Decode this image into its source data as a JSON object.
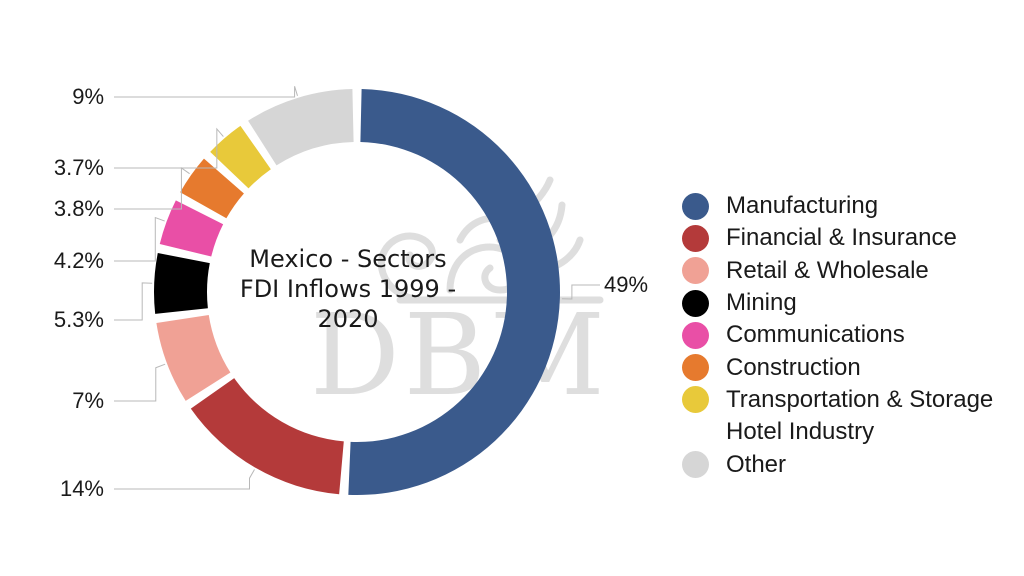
{
  "chart_data": {
    "type": "pie",
    "title": "Mexico - Sectors FDI Inflows 1999 - 2020",
    "title_lines": [
      "Mexico - Sectors",
      "FDI Inflows 1999 -",
      "2020"
    ],
    "style": "donut",
    "legend_position": "right",
    "slices": [
      {
        "name": "Manufacturing",
        "value": 49,
        "label": "49%",
        "color": "#3a5a8c"
      },
      {
        "name": "Financial & Insurance",
        "value": 14,
        "label": "14%",
        "color": "#b43a3a"
      },
      {
        "name": "Retail & Wholesale",
        "value": 7,
        "label": "7%",
        "color": "#f0a195"
      },
      {
        "name": "Mining",
        "value": 5.3,
        "label": "5.3%",
        "color": "#000000"
      },
      {
        "name": "Communications",
        "value": 4.2,
        "label": "4.2%",
        "color": "#e94fa6"
      },
      {
        "name": "Construction",
        "value": 3.8,
        "label": "3.8%",
        "color": "#e67a2e"
      },
      {
        "name": "Transportation & Storage",
        "value": 3.7,
        "label": "3.7%",
        "color": "#e8c93a"
      },
      {
        "name": "Hotel Industry",
        "value": 0,
        "label": "",
        "color": ""
      },
      {
        "name": "Other",
        "value": 9,
        "label": "9%",
        "color": "#d6d6d6"
      }
    ]
  },
  "watermark": {
    "text": "DBM"
  }
}
